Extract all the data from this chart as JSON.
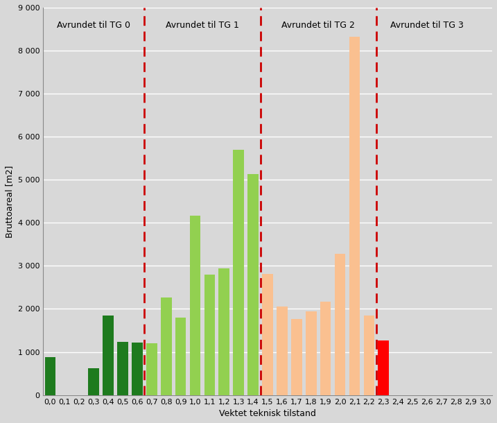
{
  "categories": [
    "0,0",
    "0,1",
    "0,2",
    "0,3",
    "0,4",
    "0,5",
    "0,6",
    "0,7",
    "0,8",
    "0,9",
    "1,0",
    "1,1",
    "1,2",
    "1,3",
    "1,4",
    "1,5",
    "1,6",
    "1,7",
    "1,8",
    "1,9",
    "2,0",
    "2,1",
    "2,2",
    "2,3",
    "2,4",
    "2,5",
    "2,6",
    "2,7",
    "2,8",
    "2,9",
    "3,0"
  ],
  "values": [
    880,
    0,
    0,
    620,
    1850,
    1230,
    1220,
    1200,
    2270,
    1800,
    4160,
    2800,
    2950,
    5700,
    5130,
    2820,
    2060,
    1770,
    1950,
    2170,
    3280,
    8320,
    1850,
    1270,
    0,
    0,
    0,
    0,
    0,
    0,
    0
  ],
  "colors": [
    "#1e7b1e",
    "#1e7b1e",
    "#1e7b1e",
    "#1e7b1e",
    "#1e7b1e",
    "#1e7b1e",
    "#1e7b1e",
    "#92d050",
    "#92d050",
    "#92d050",
    "#92d050",
    "#92d050",
    "#92d050",
    "#92d050",
    "#92d050",
    "#fac090",
    "#fac090",
    "#fac090",
    "#fac090",
    "#fac090",
    "#fac090",
    "#fac090",
    "#fac090",
    "#ff0000",
    "#ff0000",
    "#ff0000",
    "#ff0000",
    "#ff0000",
    "#ff0000",
    "#ff0000",
    "#ff0000"
  ],
  "vline_color": "#cc0000",
  "xlabel": "Vektet teknisk tilstand",
  "ylabel": "Bruttoareal [m2]",
  "ylim": [
    0,
    9000
  ],
  "ytick_labels": [
    "0",
    "1 000",
    "2 000",
    "3 000",
    "4 000",
    "5 000",
    "6 000",
    "7 000",
    "8 000",
    "9 000"
  ],
  "ytick_values": [
    0,
    1000,
    2000,
    3000,
    4000,
    5000,
    6000,
    7000,
    8000,
    9000
  ],
  "background_color": "#d8d8d8",
  "grid_color": "#ffffff",
  "label_fontsize": 8,
  "axis_fontsize": 9,
  "region_label_fontsize": 9
}
